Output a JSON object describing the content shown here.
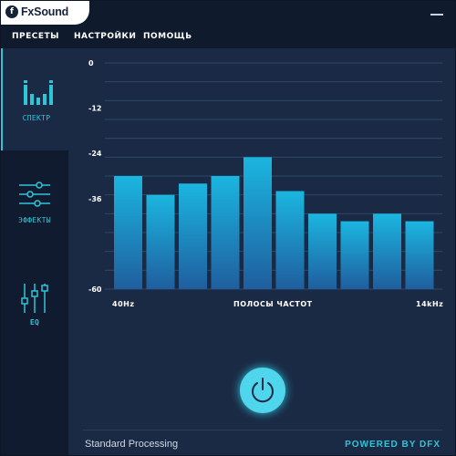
{
  "app": {
    "logo_letter": "f",
    "logo_text": "FxSound"
  },
  "menu": {
    "presets": "ПРЕСЕТЫ",
    "settings": "НАСТРОЙКИ",
    "help": "ПОМОЩЬ"
  },
  "sidebar": {
    "items": [
      {
        "label": "СПЕКТР",
        "icon": "spectrum-icon",
        "active": true
      },
      {
        "label": "ЭФФЕКТЫ",
        "icon": "effects-sliders-icon",
        "active": false
      },
      {
        "label": "EQ",
        "icon": "eq-sliders-icon",
        "active": false
      }
    ]
  },
  "chart_data": {
    "type": "bar",
    "xlabel": "ПОЛОСЫ ЧАСТОТ",
    "x_start_label": "40Hz",
    "x_end_label": "14kHz",
    "y_tick_labels": [
      "0",
      "-12",
      "-24",
      "-36",
      "-60"
    ],
    "y_ticks": [
      0,
      -12,
      -24,
      -36,
      -60
    ],
    "ylim": [
      -60,
      0
    ],
    "values": [
      -30,
      -35,
      -32,
      -30,
      -25,
      -34,
      -40,
      -42,
      -40,
      -42
    ],
    "colors": {
      "bar_top": "#1bb6e0",
      "bar_bottom": "#1f5e9e"
    }
  },
  "footer": {
    "status": "Standard Processing",
    "powered": "POWERED BY DFX"
  },
  "colors": {
    "accent": "#2ec5d8",
    "background": "#1a2a45",
    "sidebar": "#101b2f"
  }
}
